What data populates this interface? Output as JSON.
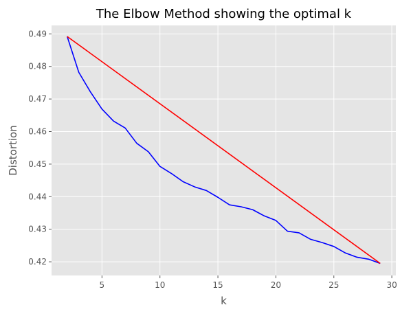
{
  "chart_data": {
    "type": "line",
    "title": "The Elbow Method showing the optimal k",
    "xlabel": "k",
    "ylabel": "Distortion",
    "xlim": [
      0.65,
      30.35
    ],
    "ylim": [
      0.4158,
      0.4926
    ],
    "xticks": [
      5,
      10,
      15,
      20,
      25,
      30
    ],
    "yticks": [
      0.42,
      0.43,
      0.44,
      0.45,
      0.46,
      0.47,
      0.48,
      0.49
    ],
    "grid": true,
    "background": "#e5e5e5",
    "series": [
      {
        "color": "#0000ff",
        "x": [
          2,
          3,
          4,
          5,
          6,
          7,
          8,
          9,
          10,
          11,
          12,
          13,
          14,
          15,
          16,
          17,
          18,
          19,
          20,
          21,
          22,
          23,
          24,
          25,
          26,
          27,
          28,
          29
        ],
        "y": [
          0.4892,
          0.4782,
          0.4722,
          0.4669,
          0.4632,
          0.4611,
          0.4564,
          0.4538,
          0.4493,
          0.4471,
          0.4446,
          0.443,
          0.4419,
          0.4398,
          0.4375,
          0.4369,
          0.436,
          0.4341,
          0.4327,
          0.4294,
          0.4289,
          0.4269,
          0.4259,
          0.4247,
          0.4227,
          0.4214,
          0.4208,
          0.4195
        ]
      },
      {
        "color": "#ff0000",
        "x": [
          2,
          29
        ],
        "y": [
          0.4892,
          0.4195
        ]
      }
    ]
  }
}
